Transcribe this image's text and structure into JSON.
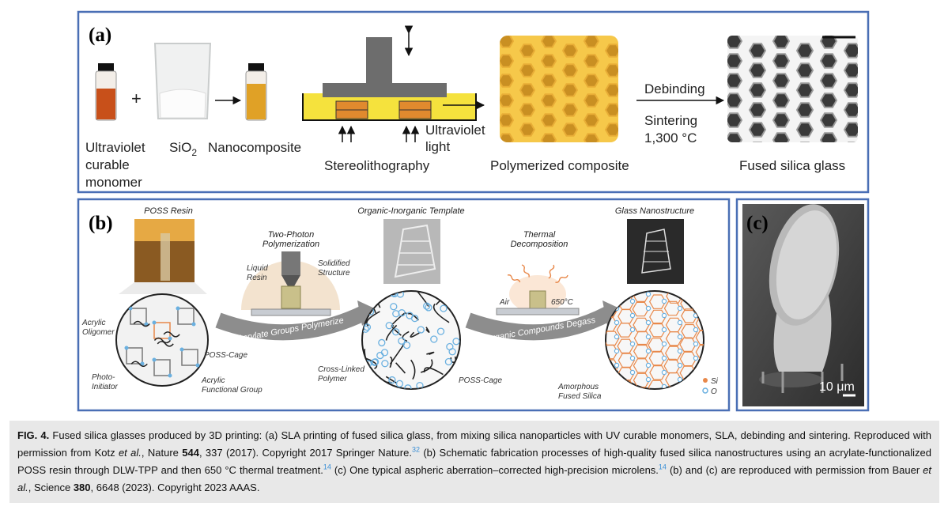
{
  "panel_a": {
    "label": "(a)",
    "plus": "+",
    "monomer": [
      "Ultraviolet",
      "curable",
      "monomer"
    ],
    "sio2": {
      "base": "SiO",
      "sub": "2"
    },
    "nanocomposite": "Nanocomposite",
    "stereolithography": "Stereolithography",
    "uv_light": [
      "Ultraviolet",
      "light"
    ],
    "polymerized": "Polymerized composite",
    "debinding": "Debinding",
    "sintering": [
      "Sintering",
      "1,300 °C"
    ],
    "glass": "Fused silica glass"
  },
  "panel_b": {
    "label": "(b)",
    "poss_resin": "POSS Resin",
    "two_photon": [
      "Two-Photon",
      "Polymerization"
    ],
    "liquid_resin": [
      "Liquid",
      "Resin"
    ],
    "solidified": [
      "Solidified",
      "Structure"
    ],
    "arrow1": "Acrylate Groups Polymerize",
    "template": "Organic-Inorganic Template",
    "thermal": [
      "Thermal",
      "Decomposition"
    ],
    "air": "Air",
    "temp": "650°C",
    "arrow2": "Organic Compounds Degass",
    "glass_nano": "Glass Nanostructure",
    "oligomer": [
      "Acrylic",
      "Oligomer"
    ],
    "initiator": [
      "Photo-",
      "Initiator"
    ],
    "poss_cage1": "POSS-Cage",
    "functional": [
      "Acrylic",
      "Functional Group"
    ],
    "crosslinked": [
      "Cross-Linked",
      "Polymer"
    ],
    "poss_cage2": "POSS-Cage",
    "amorphous": [
      "Amorphous",
      "Fused Silica"
    ],
    "si": "Si",
    "o": "O"
  },
  "panel_c": {
    "label": "(c)",
    "scale": "10 μm"
  },
  "caption": [
    "FIG. 4.",
    " Fused silica glasses produced by 3D printing: (a) SLA printing of fused silica glass, from mixing silica nanoparticles with UV curable monomers, SLA, debinding and sintering. Reproduced with permission from Kotz ",
    "et al.",
    ", Nature ",
    "544",
    ", 337 (2017). Copyright 2017 Springer Nature.",
    "32",
    " (b) Schematic fabrication processes of high-quality fused silica nanostructures using an acrylate-functionalized POSS resin through DLW-TPP and then 650 °C thermal treatment.",
    "14",
    " (c) One typical aspheric aberration–corrected high-precision microlens.",
    "14",
    " (b) and (c) are reproduced with permission from Bauer ",
    "et al.",
    ", Science ",
    "380",
    ", 6648 (2023). Copyright 2023 AAAS."
  ]
}
